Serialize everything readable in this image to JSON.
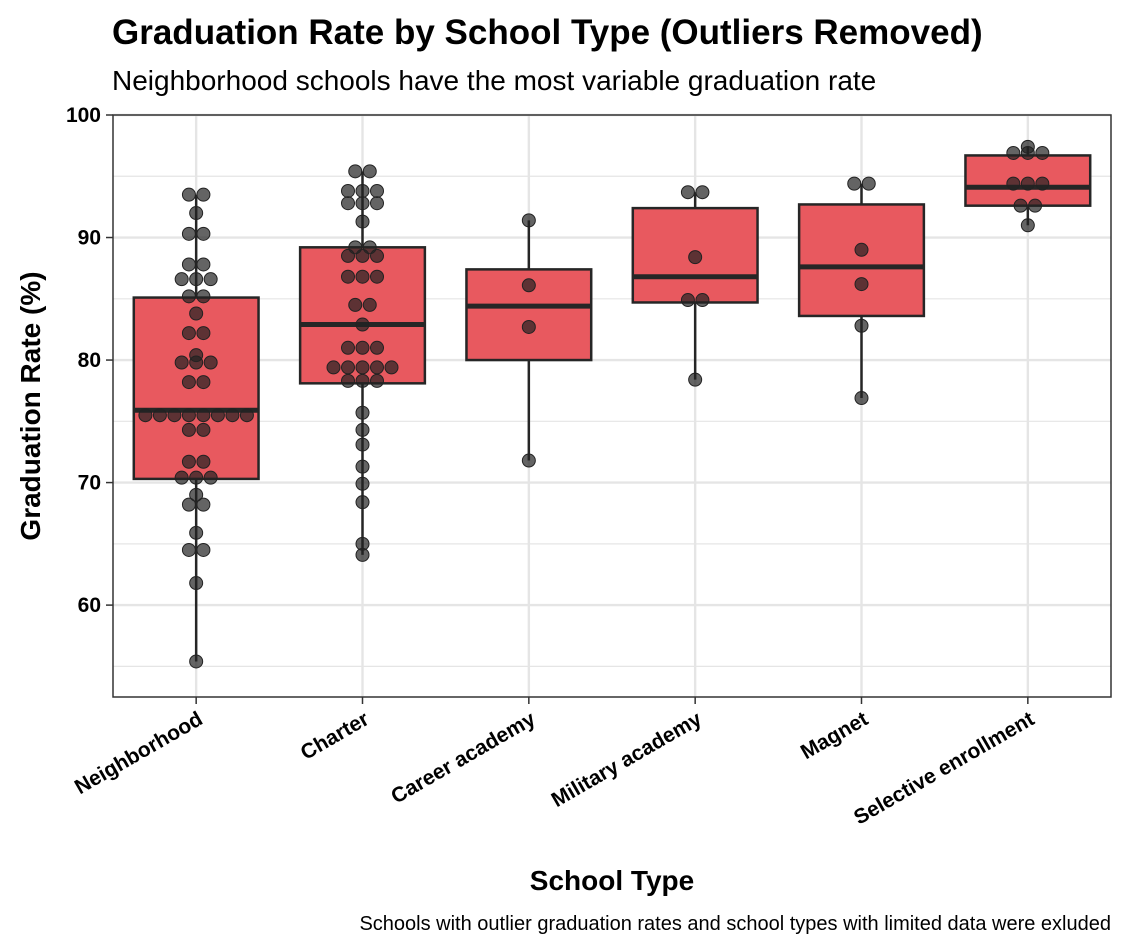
{
  "chart_data": {
    "type": "box",
    "title": "Graduation Rate by School Type (Outliers Removed)",
    "subtitle": "Neighborhood schools have the most variable graduation rate",
    "xlabel": "School Type",
    "ylabel": "Graduation Rate (%)",
    "caption": "Schools with outlier graduation rates and school types with limited data were exluded",
    "ylim": [
      52.5,
      100
    ],
    "yticks": [
      60,
      70,
      80,
      90,
      100
    ],
    "grid": true,
    "colors": {
      "box_fill": "#e8595f",
      "box_stroke": "#262626",
      "point": "#222222",
      "grid": "#e5e5e5",
      "panel_border": "#333333"
    },
    "categories": [
      "Neighborhood",
      "Charter",
      "Career academy",
      "Military academy",
      "Magnet",
      "Selective enrollment"
    ],
    "boxes": [
      {
        "category": "Neighborhood",
        "min": 55.4,
        "q1": 70.3,
        "median": 75.9,
        "q3": 85.1,
        "max": 93.5
      },
      {
        "category": "Charter",
        "min": 64.1,
        "q1": 78.1,
        "median": 82.9,
        "q3": 89.2,
        "max": 95.4
      },
      {
        "category": "Career academy",
        "min": 71.8,
        "q1": 80.0,
        "median": 84.4,
        "q3": 87.4,
        "max": 91.4
      },
      {
        "category": "Military academy",
        "min": 78.4,
        "q1": 84.7,
        "median": 86.8,
        "q3": 92.4,
        "max": 93.7
      },
      {
        "category": "Magnet",
        "min": 76.9,
        "q1": 83.6,
        "median": 87.6,
        "q3": 92.7,
        "max": 94.4
      },
      {
        "category": "Selective enrollment",
        "min": 91.0,
        "q1": 92.6,
        "median": 94.1,
        "q3": 96.7,
        "max": 97.4
      }
    ],
    "points": [
      [
        93.5,
        93.5,
        92.0,
        90.3,
        90.3,
        87.8,
        87.8,
        86.6,
        86.6,
        86.6,
        85.2,
        85.2,
        83.8,
        82.2,
        82.2,
        80.4,
        79.8,
        79.8,
        79.8,
        78.2,
        78.2,
        75.5,
        75.5,
        75.5,
        75.5,
        75.5,
        75.5,
        75.5,
        75.5,
        74.3,
        74.3,
        71.7,
        71.7,
        70.4,
        70.4,
        70.4,
        69.0,
        68.2,
        68.2,
        65.9,
        64.5,
        64.5,
        61.8,
        55.4
      ],
      [
        95.4,
        95.4,
        93.8,
        93.8,
        93.8,
        92.8,
        92.8,
        92.8,
        91.3,
        89.2,
        89.2,
        88.5,
        88.5,
        88.5,
        86.8,
        86.8,
        86.8,
        84.5,
        84.5,
        82.9,
        81.0,
        81.0,
        81.0,
        79.4,
        79.4,
        79.4,
        79.4,
        79.4,
        78.3,
        78.3,
        78.3,
        75.7,
        74.3,
        73.1,
        71.3,
        69.9,
        68.4,
        65.0,
        64.1
      ],
      [
        91.4,
        86.1,
        82.7,
        71.8
      ],
      [
        93.7,
        93.7,
        88.4,
        84.9,
        84.9,
        78.4
      ],
      [
        94.4,
        94.4,
        89.0,
        86.2,
        82.8,
        76.9
      ],
      [
        97.4,
        96.9,
        96.9,
        96.9,
        94.4,
        94.4,
        94.4,
        92.6,
        92.6,
        91.0
      ]
    ]
  }
}
